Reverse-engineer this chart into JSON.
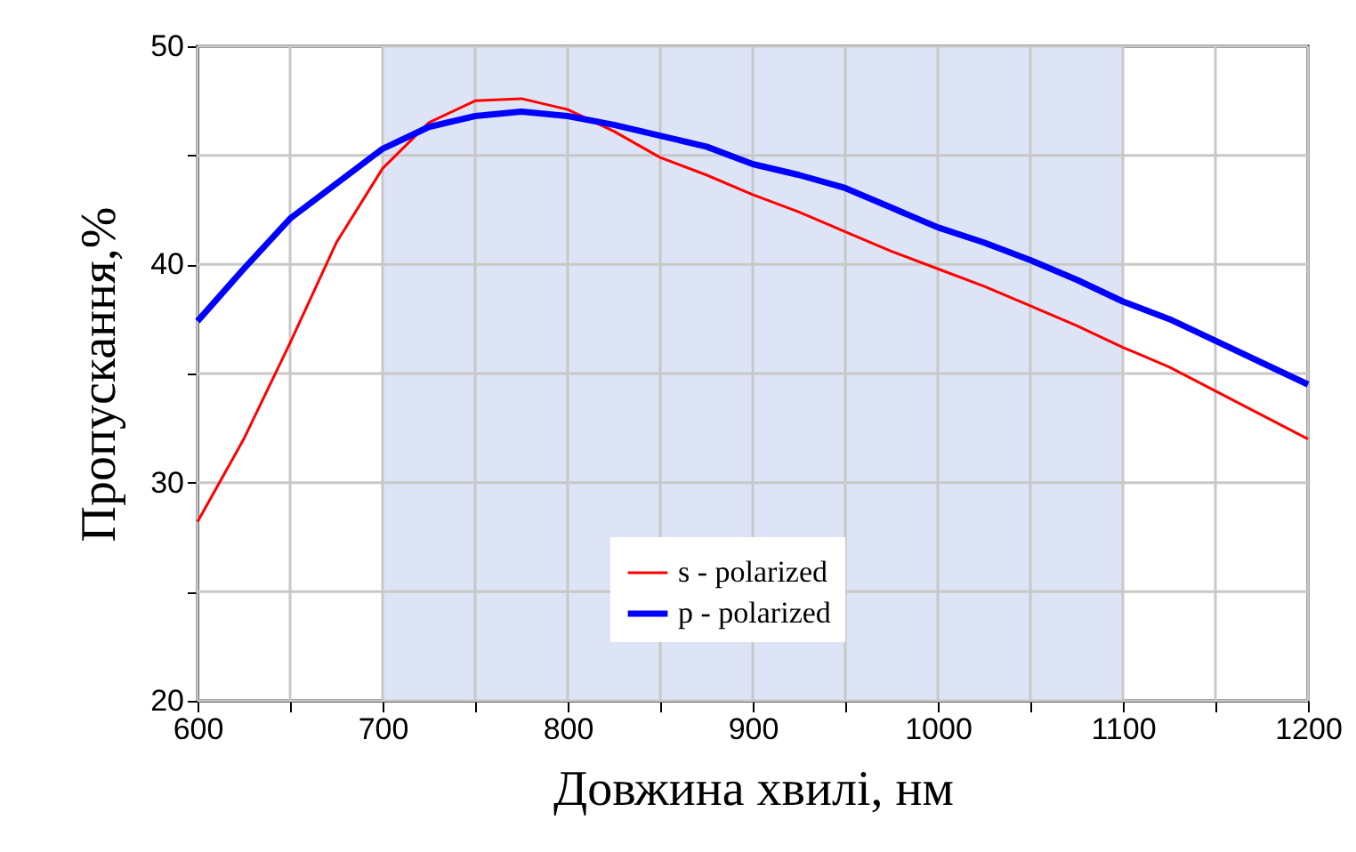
{
  "chart_data": {
    "type": "line",
    "xlabel": "Довжина хвилі, нм",
    "ylabel": "Пропускання,%",
    "x": [
      600,
      625,
      650,
      675,
      700,
      725,
      750,
      775,
      800,
      825,
      850,
      875,
      900,
      925,
      950,
      975,
      1000,
      1025,
      1050,
      1075,
      1100,
      1125,
      1150,
      1175,
      1200
    ],
    "series": [
      {
        "name": "s - polarized",
        "color": "#ff0000",
        "values": [
          28.2,
          32.0,
          36.4,
          41.0,
          44.4,
          46.5,
          47.5,
          47.6,
          47.1,
          46.1,
          44.9,
          44.1,
          43.2,
          42.4,
          41.5,
          40.6,
          39.8,
          39.0,
          38.1,
          37.2,
          36.2,
          35.3,
          34.2,
          33.1,
          32.0
        ]
      },
      {
        "name": "p - polarized",
        "color": "#0000ff",
        "values": [
          37.4,
          39.8,
          42.1,
          43.7,
          45.3,
          46.3,
          46.8,
          47.0,
          46.8,
          46.4,
          45.9,
          45.4,
          44.6,
          44.1,
          43.5,
          42.6,
          41.7,
          41.0,
          40.2,
          39.3,
          38.3,
          37.5,
          36.5,
          35.5,
          34.5
        ]
      }
    ],
    "xlim": [
      600,
      1200
    ],
    "ylim": [
      20,
      50
    ],
    "xticks": [
      600,
      {
        "value": 650,
        "label": null
      },
      700,
      {
        "value": 750,
        "label": null
      },
      800,
      {
        "value": 850,
        "label": null
      },
      900,
      {
        "value": 950,
        "label": null
      },
      1000,
      {
        "value": 1050,
        "label": null
      },
      1100,
      {
        "value": 1150,
        "label": null
      },
      1200
    ],
    "yticks": [
      20,
      {
        "value": 25,
        "label": null
      },
      30,
      {
        "value": 35,
        "label": null
      },
      40,
      {
        "value": 45,
        "label": null
      },
      50
    ],
    "bands": [
      {
        "axis": "x",
        "from": 700,
        "to": 1100,
        "color": "#dce4f5"
      }
    ],
    "grid": true,
    "legend": "bottom"
  }
}
